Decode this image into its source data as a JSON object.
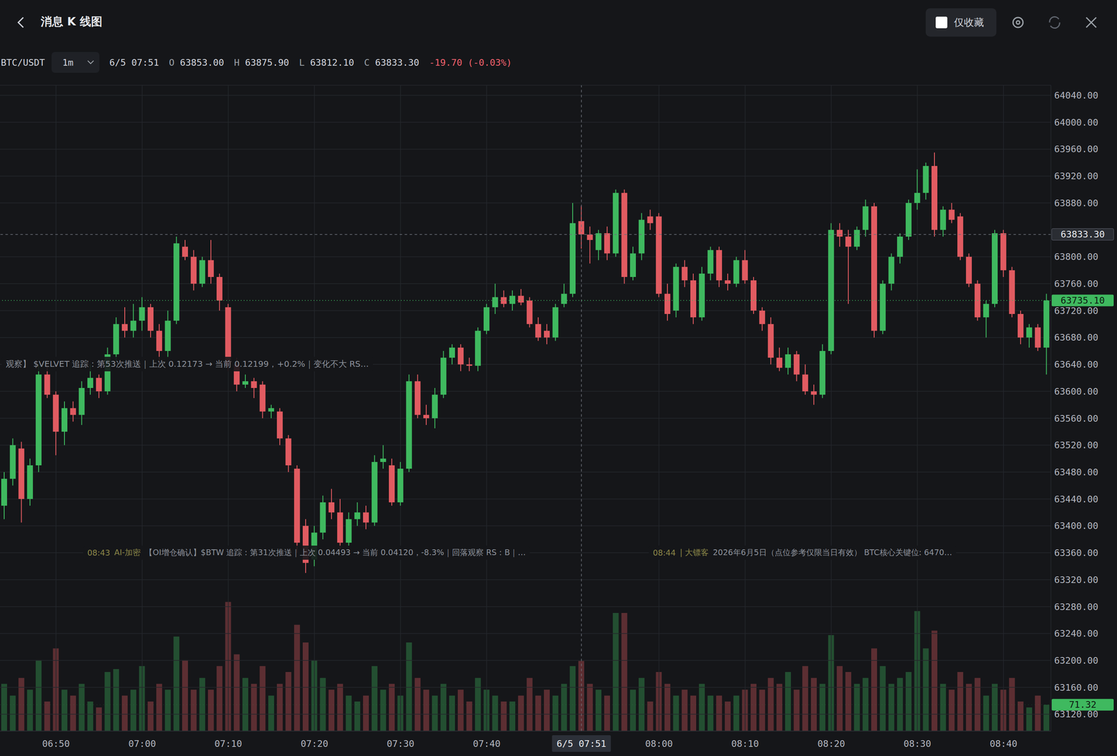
{
  "app": {
    "title": "消息 K 线图",
    "favorites_only": "仅收藏",
    "symbol": "BTC/USDT",
    "interval": "1m",
    "readout": {
      "time": "6/5 07:51",
      "fields": [
        {
          "key": "O",
          "value": 63853,
          "label": "63853.00"
        },
        {
          "key": "H",
          "value": 63875.9,
          "label": "63875.90"
        },
        {
          "key": "L",
          "value": 63812.1,
          "label": "63812.10"
        },
        {
          "key": "C",
          "value": 63833.3,
          "label": "63833.30"
        }
      ],
      "change_label": "-19.70 (-0.03%)"
    },
    "messages": [
      {
        "text": "观察】 $VELVET 追踪：第53次推送｜上次 0.12173 → 当前 0.12199，+0.2%｜变化不大 RS…"
      },
      {
        "time": "08:43",
        "source": "AI-加密",
        "text": "【OI增仓确认】$BTW 追踪：第31次推送｜上次 0.04493 → 当前 0.04120，-8.3%｜回落观察 RS：B｜…"
      },
      {
        "time": "08:44",
        "source": "| 大镖客",
        "text": "2026年6月5日（点位参考仅限当日有效） BTC核心关键位: 6470…"
      }
    ]
  },
  "chart_data": {
    "type": "candlestick",
    "grid": true,
    "color": {
      "up": "#3fb95f",
      "down": "#e15b61"
    },
    "categories": [
      null,
      null,
      null,
      null,
      null,
      null,
      "06:50",
      null,
      null,
      null,
      null,
      null,
      null,
      null,
      null,
      null,
      "07:00",
      null,
      null,
      null,
      null,
      null,
      null,
      null,
      null,
      null,
      "07:10",
      null,
      null,
      null,
      null,
      null,
      null,
      null,
      null,
      null,
      "07:20",
      null,
      null,
      null,
      null,
      null,
      null,
      null,
      null,
      null,
      "07:30",
      null,
      null,
      null,
      null,
      null,
      null,
      null,
      null,
      null,
      "07:40",
      null,
      null,
      null,
      null,
      null,
      null,
      null,
      null,
      null,
      null,
      "6/5 07:51",
      null,
      null,
      null,
      null,
      null,
      null,
      null,
      null,
      "08:00",
      null,
      null,
      null,
      null,
      null,
      null,
      null,
      null,
      null,
      "08:10",
      null,
      null,
      null,
      null,
      null,
      null,
      null,
      null,
      null,
      "08:20",
      null,
      null,
      null,
      null,
      null,
      null,
      null,
      null,
      null,
      "08:30",
      null,
      null,
      null,
      null,
      null,
      null,
      null,
      null,
      null,
      "08:40",
      null,
      null,
      null,
      null,
      null
    ],
    "open": [
      63430,
      63470,
      63515,
      63440,
      63490,
      63625,
      63595,
      63540,
      63575,
      63565,
      63605,
      63620,
      63600,
      63655,
      63700,
      63690,
      63705,
      63725,
      63690,
      63660,
      63705,
      63815,
      63800,
      63760,
      63795,
      63770,
      63725,
      63640,
      63610,
      63615,
      63610,
      63570,
      63570,
      63530,
      63485,
      63400,
      63350,
      63390,
      63435,
      63420,
      63375,
      63410,
      63420,
      63405,
      63495,
      63490,
      63435,
      63485,
      63615,
      63565,
      63560,
      63595,
      63650,
      63665,
      63640,
      63638,
      63690,
      63725,
      63740,
      63730,
      63742,
      63735,
      63700,
      63690,
      63680,
      63730,
      63745,
      63853,
      63833,
      63810,
      63835,
      63805,
      63895,
      63770,
      63805,
      63860,
      63860,
      63745,
      63720,
      63785,
      63765,
      63710,
      63775,
      63810,
      63765,
      63760,
      63795,
      63765,
      63720,
      63700,
      63650,
      63635,
      63655,
      63625,
      63600,
      63595,
      63660,
      63840,
      63830,
      63815,
      63840,
      63875,
      63690,
      63760,
      63800,
      63830,
      63880,
      63895,
      63935,
      63840,
      63870,
      63860,
      63800,
      63760,
      63710,
      63730,
      63835,
      63780,
      63715,
      63680,
      63695,
      63665
    ],
    "high": [
      63480,
      63530,
      63525,
      63500,
      63640,
      63640,
      63600,
      63585,
      63585,
      63615,
      63640,
      63625,
      63665,
      63710,
      63725,
      63730,
      63740,
      63730,
      63700,
      63720,
      63830,
      63825,
      63810,
      63800,
      63825,
      63775,
      63730,
      63650,
      63625,
      63620,
      63615,
      63580,
      63575,
      63535,
      63490,
      63410,
      63400,
      63445,
      63455,
      63440,
      63420,
      63435,
      63430,
      63505,
      63520,
      63500,
      63495,
      63625,
      63625,
      63580,
      63605,
      63660,
      63670,
      63670,
      63650,
      63695,
      63730,
      63760,
      63750,
      63750,
      63752,
      63740,
      63710,
      63700,
      63730,
      63760,
      63880,
      63875.9,
      63845,
      63840,
      63845,
      63900,
      63900,
      63815,
      63865,
      63870,
      63865,
      63760,
      63790,
      63795,
      63775,
      63785,
      63815,
      63815,
      63775,
      63800,
      63810,
      63770,
      63725,
      63710,
      63665,
      63665,
      63660,
      63640,
      63610,
      63670,
      63850,
      63850,
      63840,
      63845,
      63885,
      63880,
      63765,
      63805,
      63835,
      63885,
      63930,
      63940,
      63955,
      63875,
      63880,
      63865,
      63805,
      63765,
      63735,
      63840,
      63840,
      63785,
      63720,
      63700,
      63700,
      63745
    ],
    "low": [
      63410,
      63460,
      63405,
      63430,
      63480,
      63590,
      63505,
      63520,
      63555,
      63550,
      63595,
      63590,
      63595,
      63645,
      63680,
      63680,
      63690,
      63680,
      63640,
      63650,
      63700,
      63795,
      63750,
      63755,
      63760,
      63720,
      63630,
      63600,
      63605,
      63590,
      63560,
      63560,
      63520,
      63480,
      63360,
      63330,
      63340,
      63380,
      63410,
      63365,
      63370,
      63400,
      63395,
      63400,
      63485,
      63430,
      63430,
      63480,
      63560,
      63550,
      63545,
      63590,
      63640,
      63630,
      63630,
      63630,
      63685,
      63715,
      63725,
      63720,
      63728,
      63695,
      63675,
      63670,
      63675,
      63725,
      63740,
      63812.1,
      63790,
      63795,
      63795,
      63800,
      63760,
      63765,
      63795,
      63840,
      63740,
      63705,
      63710,
      63755,
      63700,
      63705,
      63765,
      63755,
      63750,
      63755,
      63760,
      63715,
      63690,
      63640,
      63630,
      63625,
      63615,
      63595,
      63580,
      63590,
      63655,
      63815,
      63730,
      63810,
      63830,
      63680,
      63685,
      63750,
      63790,
      63825,
      63870,
      63885,
      63830,
      63830,
      63850,
      63795,
      63755,
      63705,
      63680,
      63725,
      63770,
      63710,
      63670,
      63665,
      63660,
      63625
    ],
    "close": [
      63470,
      63520,
      63440,
      63490,
      63625,
      63595,
      63540,
      63575,
      63565,
      63605,
      63620,
      63600,
      63655,
      63700,
      63690,
      63705,
      63725,
      63690,
      63660,
      63705,
      63820,
      63800,
      63760,
      63795,
      63770,
      63735,
      63640,
      63610,
      63615,
      63605,
      63570,
      63575,
      63530,
      63490,
      63375,
      63345,
      63390,
      63435,
      63420,
      63375,
      63410,
      63420,
      63405,
      63495,
      63500,
      63435,
      63485,
      63615,
      63565,
      63560,
      63595,
      63650,
      63665,
      63640,
      63638,
      63690,
      63725,
      63740,
      63730,
      63742,
      63732,
      63700,
      63680,
      63680,
      63725,
      63745,
      63850,
      63833.3,
      63825,
      63835,
      63805,
      63895,
      63770,
      63805,
      63855,
      63850,
      63745,
      63715,
      63785,
      63765,
      63710,
      63775,
      63810,
      63765,
      63760,
      63795,
      63765,
      63720,
      63700,
      63650,
      63635,
      63655,
      63625,
      63600,
      63595,
      63660,
      63840,
      63830,
      63815,
      63840,
      63875,
      63690,
      63760,
      63800,
      63830,
      63880,
      63895,
      63935,
      63840,
      63870,
      63855,
      63800,
      63760,
      63710,
      63730,
      63835,
      63780,
      63715,
      63680,
      63695,
      63665,
      63735.1
    ],
    "volume": [
      128,
      96,
      144,
      112,
      192,
      80,
      224,
      112,
      96,
      128,
      80,
      64,
      160,
      168,
      96,
      112,
      176,
      80,
      128,
      112,
      256,
      192,
      112,
      144,
      112,
      176,
      350,
      208,
      144,
      128,
      176,
      96,
      128,
      160,
      288,
      240,
      192,
      144,
      112,
      128,
      96,
      80,
      96,
      176,
      112,
      128,
      96,
      240,
      144,
      112,
      96,
      128,
      96,
      112,
      80,
      144,
      112,
      96,
      80,
      80,
      96,
      144,
      96,
      112,
      96,
      128,
      176,
      190,
      128,
      112,
      96,
      320,
      320,
      112,
      144,
      80,
      160,
      128,
      96,
      112,
      96,
      128,
      96,
      96,
      80,
      96,
      112,
      128,
      112,
      144,
      128,
      160,
      112,
      176,
      144,
      128,
      260,
      176,
      160,
      128,
      144,
      224,
      176,
      128,
      144,
      160,
      325,
      224,
      272,
      128,
      112,
      160,
      128,
      144,
      96,
      128,
      112,
      144,
      80,
      64,
      96,
      71.32
    ],
    "ylim": [
      63095,
      64055
    ],
    "yticks": [
      {
        "value": 63120,
        "label": "63120.00"
      },
      {
        "value": 63160,
        "label": "63160.00"
      },
      {
        "value": 63200,
        "label": "63200.00"
      },
      {
        "value": 63240,
        "label": "63240.00"
      },
      {
        "value": 63280,
        "label": "63280.00"
      },
      {
        "value": 63320,
        "label": "63320.00"
      },
      {
        "value": 63360,
        "label": "63360.00"
      },
      {
        "value": 63400,
        "label": "63400.00"
      },
      {
        "value": 63440,
        "label": "63440.00"
      },
      {
        "value": 63480,
        "label": "63480.00"
      },
      {
        "value": 63520,
        "label": "63520.00"
      },
      {
        "value": 63560,
        "label": "63560.00"
      },
      {
        "value": 63600,
        "label": "63600.00"
      },
      {
        "value": 63640,
        "label": "63640.00"
      },
      {
        "value": 63680,
        "label": "63680.00"
      },
      {
        "value": 63720,
        "label": "63720.00"
      },
      {
        "value": 63760,
        "label": "63760.00"
      },
      {
        "value": 63800,
        "label": "63800.00"
      },
      {
        "value": 63880,
        "label": "63880.00"
      },
      {
        "value": 63920,
        "label": "63920.00"
      },
      {
        "value": 63960,
        "label": "63960.00"
      },
      {
        "value": 64000,
        "label": "64000.00"
      },
      {
        "value": 64040,
        "label": "64040.00"
      }
    ],
    "y2lim": [
      0,
      1750
    ],
    "price_tags": [
      {
        "value": 63833.3,
        "label": "63833.30",
        "color": "#2a2d33",
        "line_style": "dashed"
      },
      {
        "value": 63735.1,
        "label": "63735.10",
        "color": "#3fb95f",
        "line_style": "dotted"
      }
    ],
    "volume_tag": {
      "value": 71.32,
      "label": "71.32",
      "color": "#3fb95f"
    }
  }
}
